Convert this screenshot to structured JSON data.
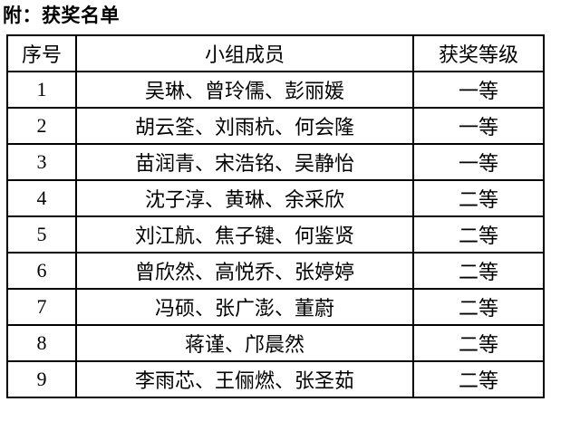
{
  "page": {
    "title": "附：获奖名单"
  },
  "table": {
    "headers": [
      "序号",
      "小组成员",
      "获奖等级"
    ],
    "rows": [
      {
        "no": "1",
        "members": "吴琳、曾玲儒、彭丽媛",
        "award": "一等"
      },
      {
        "no": "2",
        "members": "胡云筌、刘雨杭、何会隆",
        "award": "一等"
      },
      {
        "no": "3",
        "members": "苗润青、宋浩铭、吴静怡",
        "award": "一等"
      },
      {
        "no": "4",
        "members": "沈子淳、黄琳、余采欣",
        "award": "二等"
      },
      {
        "no": "5",
        "members": "刘江航、焦子键、何鉴贤",
        "award": "二等"
      },
      {
        "no": "6",
        "members": "曾欣然、高悦乔、张婷婷",
        "award": "二等"
      },
      {
        "no": "7",
        "members": "冯硕、张广澎、董蔚",
        "award": "二等"
      },
      {
        "no": "8",
        "members": "蒋谨、邝晨然",
        "award": "二等"
      },
      {
        "no": "9",
        "members": "李雨芯、王俪燃、张圣茹",
        "award": "二等"
      }
    ]
  },
  "colors": {
    "text": "#000000",
    "background": "#ffffff",
    "border": "#000000"
  }
}
